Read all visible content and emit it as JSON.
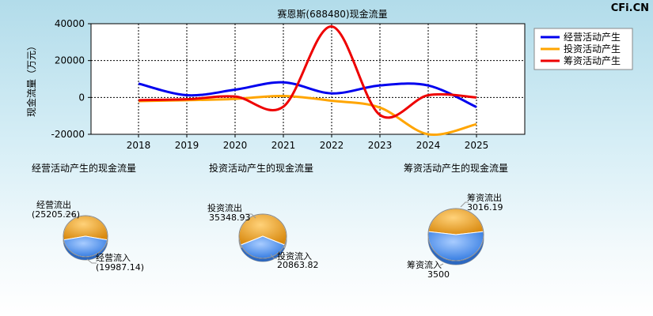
{
  "watermark": "CFi.CN",
  "chart_data": [
    {
      "type": "line",
      "title": "赛恩斯(688480)现金流量",
      "ylabel": "现金流量（万元）",
      "x": [
        "2018",
        "2019",
        "2020",
        "2021",
        "2022",
        "2023",
        "2024",
        "2025"
      ],
      "ylim": [
        -20000,
        40000
      ],
      "yticks": [
        "40000",
        "20000",
        "0",
        "-20000"
      ],
      "grid": true,
      "legend_position": "top-right",
      "series": [
        {
          "name": "经营活动产生",
          "color": "#0000ee",
          "values": [
            7500,
            1200,
            4200,
            8200,
            2200,
            6500,
            6500,
            -5200
          ]
        },
        {
          "name": "投资活动产生",
          "color": "#ffa500",
          "values": [
            -2000,
            -1500,
            -800,
            800,
            -1800,
            -5500,
            -20000,
            -14500
          ]
        },
        {
          "name": "筹资活动产生",
          "color": "#ee0000",
          "values": [
            -1500,
            -1000,
            500,
            -5000,
            38500,
            -9500,
            1200,
            0
          ]
        }
      ]
    },
    {
      "type": "pie",
      "title": "经营活动产生的现金流量",
      "slices": [
        {
          "label": "经营流出",
          "value": "(25205.26)",
          "amount": 25205.26,
          "color": "#f0a020"
        },
        {
          "label": "经营流入",
          "value": "(19987.14)",
          "amount": 19987.14,
          "color": "#4a90f0"
        }
      ]
    },
    {
      "type": "pie",
      "title": "投资活动产生的现金流量",
      "slices": [
        {
          "label": "投资流出",
          "value": "35348.93",
          "amount": 35348.93,
          "color": "#f0a020"
        },
        {
          "label": "投资流入",
          "value": "20863.82",
          "amount": 20863.82,
          "color": "#4a90f0"
        }
      ]
    },
    {
      "type": "pie",
      "title": "筹资活动产生的现金流量",
      "slices": [
        {
          "label": "筹资流出",
          "value": "3016.19",
          "amount": 3016.19,
          "color": "#f0a020"
        },
        {
          "label": "筹资流入",
          "value": "3500",
          "amount": 3500,
          "color": "#4a90f0"
        }
      ]
    }
  ]
}
